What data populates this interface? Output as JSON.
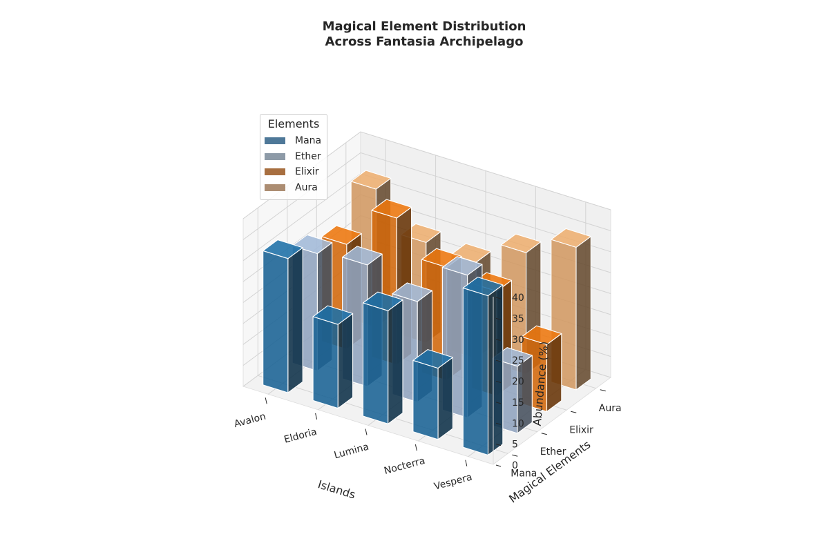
{
  "chart_data": {
    "type": "bar3d",
    "title": "Magical Element Distribution",
    "subtitle": "Across Fantasia Archipelago",
    "xlabel": "Islands",
    "ylabel": "Magical Elements",
    "zlabel": "Abundance (%)",
    "categories": [
      "Avalon",
      "Eldoria",
      "Lumina",
      "Nocterra",
      "Vespera"
    ],
    "zticks": [
      "0",
      "5",
      "10",
      "15",
      "20",
      "25",
      "30",
      "35",
      "40"
    ],
    "zlim": [
      0,
      40
    ],
    "legend_title": "Elements",
    "legend_position": "upper-left",
    "grid": true,
    "series": [
      {
        "name": "Mana",
        "color": "#1f77b4",
        "legend_color": "#4e7898",
        "values": [
          32,
          20,
          27,
          17,
          38
        ]
      },
      {
        "name": "Ether",
        "color": "#aec7e8",
        "legend_color": "#8d9aa7",
        "values": [
          28,
          29,
          24,
          34,
          16
        ]
      },
      {
        "name": "Elixir",
        "color": "#ff7f0e",
        "legend_color": "#a86f40",
        "values": [
          25,
          35,
          27,
          25,
          16
        ]
      },
      {
        "name": "Aura",
        "color": "#ffbb78",
        "legend_color": "#ac8d72",
        "values": [
          33,
          24,
          23,
          29,
          34
        ]
      }
    ]
  }
}
